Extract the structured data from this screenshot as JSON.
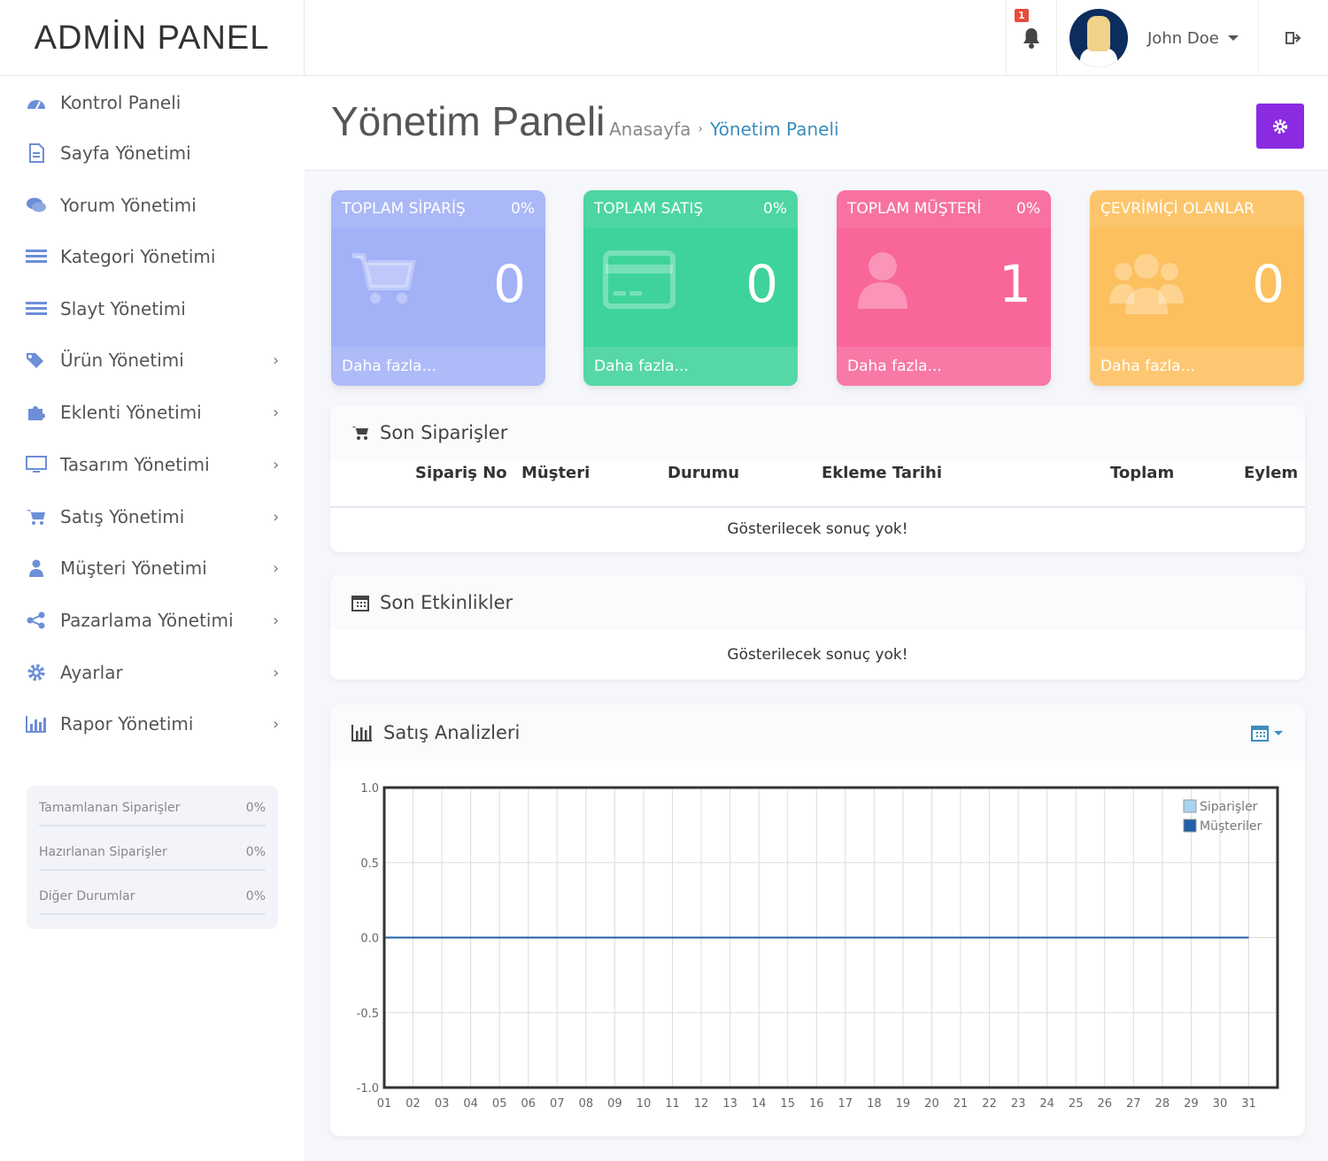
{
  "header": {
    "logo": "ADMİN PANEL",
    "notification_count": "1",
    "user_name": "John Doe"
  },
  "sidebar": {
    "items": [
      {
        "label": "Kontrol Paneli",
        "icon": "dashboard-icon"
      },
      {
        "label": "Sayfa Yönetimi",
        "icon": "file-icon"
      },
      {
        "label": "Yorum Yönetimi",
        "icon": "comments-icon"
      },
      {
        "label": "Kategori Yönetimi",
        "icon": "list-icon"
      },
      {
        "label": "Slayt Yönetimi",
        "icon": "list-icon"
      },
      {
        "label": "Ürün Yönetimi",
        "icon": "tags-icon",
        "has_submenu": true
      },
      {
        "label": "Eklenti Yönetimi",
        "icon": "puzzle-icon",
        "has_submenu": true
      },
      {
        "label": "Tasarım Yönetimi",
        "icon": "desktop-icon",
        "has_submenu": true
      },
      {
        "label": "Satış Yönetimi",
        "icon": "cart-icon",
        "has_submenu": true
      },
      {
        "label": "Müşteri Yönetimi",
        "icon": "user-icon",
        "has_submenu": true
      },
      {
        "label": "Pazarlama Yönetimi",
        "icon": "share-icon",
        "has_submenu": true
      },
      {
        "label": "Ayarlar",
        "icon": "gear-icon",
        "has_submenu": true
      },
      {
        "label": "Rapor Yönetimi",
        "icon": "bar-chart-icon",
        "has_submenu": true
      }
    ],
    "order_stats": [
      {
        "label": "Tamamlanan Siparişler",
        "value": "0%"
      },
      {
        "label": "Hazırlanan Siparişler",
        "value": "0%"
      },
      {
        "label": "Diğer Durumlar",
        "value": "0%"
      }
    ]
  },
  "page": {
    "title": "Yönetim Paneli",
    "breadcrumb": [
      "Anasayfa",
      "Yönetim Paneli"
    ]
  },
  "cards": [
    {
      "title": "TOPLAM SİPARİŞ",
      "pct": "0%",
      "value": "0",
      "footer": "Daha fazla...",
      "color": "#a3b2f7",
      "icon": "cart-icon"
    },
    {
      "title": "TOPLAM SATIŞ",
      "pct": "0%",
      "value": "0",
      "footer": "Daha fazla...",
      "color": "#3ed39a",
      "icon": "credit-card-icon"
    },
    {
      "title": "TOPLAM MÜŞTERİ",
      "pct": "0%",
      "value": "1",
      "footer": "Daha fazla...",
      "color": "#f8669a",
      "icon": "user-icon"
    },
    {
      "title": "ÇEVRİMİÇİ OLANLAR",
      "pct": "",
      "value": "0",
      "footer": "Daha fazla...",
      "color": "#fdc05f",
      "icon": "users-icon"
    }
  ],
  "orders": {
    "title": "Son Siparişler",
    "columns": [
      "Sipariş No",
      "Müşteri",
      "Durumu",
      "Ekleme Tarihi",
      "Toplam",
      "Eylem"
    ],
    "empty": "Gösterilecek sonuç yok!"
  },
  "activities": {
    "title": "Son Etkinlikler",
    "empty": "Gösterilecek sonuç yok!"
  },
  "analytics": {
    "title": "Satış Analizleri"
  },
  "chart_data": {
    "type": "line",
    "x": [
      "01",
      "02",
      "03",
      "04",
      "05",
      "06",
      "07",
      "08",
      "09",
      "10",
      "11",
      "12",
      "13",
      "14",
      "15",
      "16",
      "17",
      "18",
      "19",
      "20",
      "21",
      "22",
      "23",
      "24",
      "25",
      "26",
      "27",
      "28",
      "29",
      "30",
      "31"
    ],
    "series": [
      {
        "name": "Siparişler",
        "values": [
          0,
          0,
          0,
          0,
          0,
          0,
          0,
          0,
          0,
          0,
          0,
          0,
          0,
          0,
          0,
          0,
          0,
          0,
          0,
          0,
          0,
          0,
          0,
          0,
          0,
          0,
          0,
          0,
          0,
          0,
          0
        ],
        "color": "#a9d3f0"
      },
      {
        "name": "Müşteriler",
        "values": [
          0,
          0,
          0,
          0,
          0,
          0,
          0,
          0,
          0,
          0,
          0,
          0,
          0,
          0,
          0,
          0,
          0,
          0,
          0,
          0,
          0,
          0,
          0,
          0,
          0,
          0,
          0,
          0,
          0,
          0,
          0
        ],
        "color": "#1f5fa8"
      }
    ],
    "yticks": [
      "1.0",
      "0.5",
      "0.0",
      "-0.5",
      "-1.0"
    ],
    "ylim": [
      -1,
      1
    ],
    "grid": true,
    "legend": "top-right"
  }
}
